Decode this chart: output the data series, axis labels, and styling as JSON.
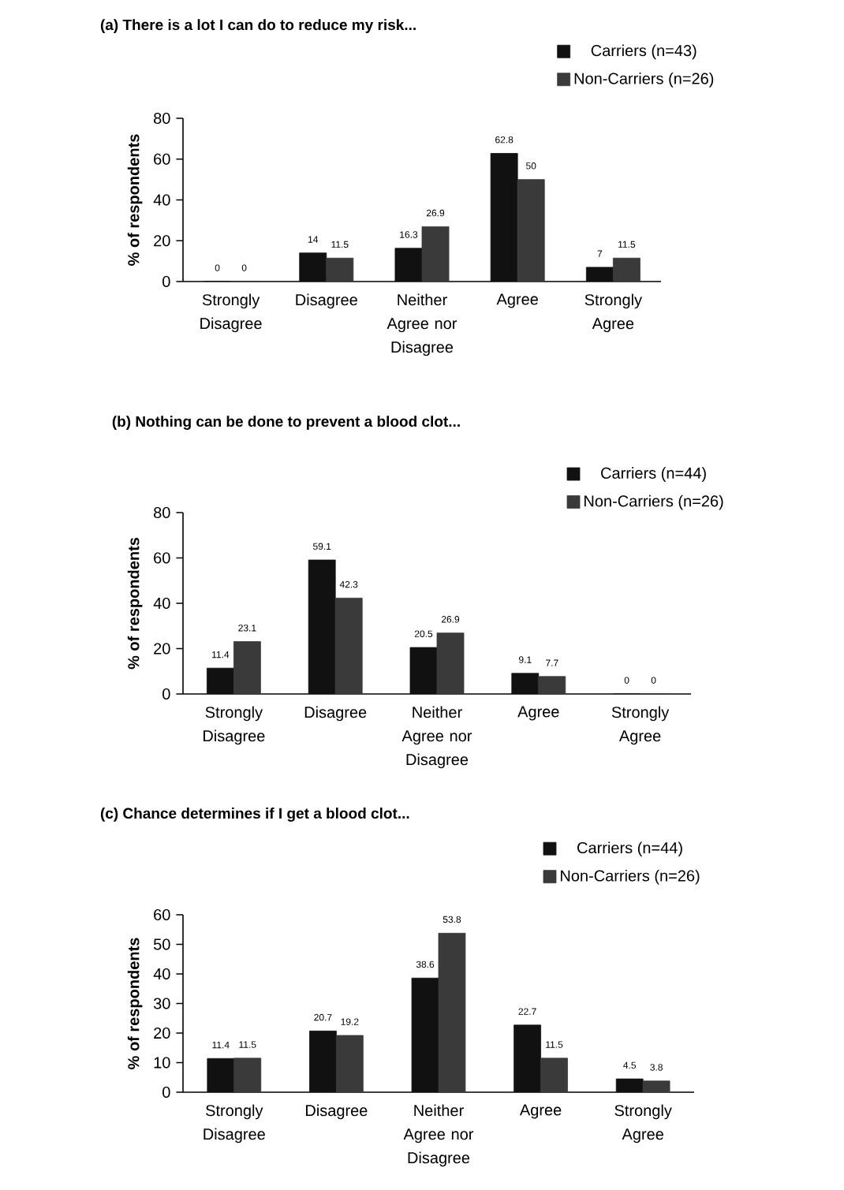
{
  "chart_data": [
    {
      "type": "bar",
      "title": "(a) There is a lot I can do to reduce my risk...",
      "ylabel": "% of respondents",
      "categories": [
        "Strongly Disagree",
        "Disagree",
        "Neither Agree nor Disagree",
        "Agree",
        "Strongly Agree"
      ],
      "series": [
        {
          "name": "Carriers (n=43)",
          "color": "#111111",
          "values": [
            0,
            14,
            16.3,
            62.8,
            7
          ]
        },
        {
          "name": "Non-Carriers (n=26)",
          "color": "#3a3a3a",
          "values": [
            0,
            11.5,
            26.9,
            50,
            11.5
          ]
        }
      ],
      "ylim": [
        0,
        80
      ],
      "yticks": [
        0,
        20,
        40,
        60,
        80
      ],
      "data_labels": true,
      "legend": "top right"
    },
    {
      "type": "bar",
      "title": "(b) Nothing can be done to prevent a blood clot...",
      "ylabel": "% of respondents",
      "categories": [
        "Strongly Disagree",
        "Disagree",
        "Neither Agree nor Disagree",
        "Agree",
        "Strongly Agree"
      ],
      "series": [
        {
          "name": "Carriers (n=44)",
          "color": "#111111",
          "values": [
            11.4,
            59.1,
            20.5,
            9.1,
            0
          ]
        },
        {
          "name": "Non-Carriers (n=26)",
          "color": "#3a3a3a",
          "values": [
            23.1,
            42.3,
            26.9,
            7.7,
            0
          ]
        }
      ],
      "ylim": [
        0,
        80
      ],
      "yticks": [
        0,
        20,
        40,
        60,
        80
      ],
      "data_labels": true,
      "legend": "top right"
    },
    {
      "type": "bar",
      "title": "(c) Chance determines if I get a blood clot...",
      "ylabel": "% of respondents",
      "categories": [
        "Strongly Disagree",
        "Disagree",
        "Neither Agree nor Disagree",
        "Agree",
        "Strongly Agree"
      ],
      "series": [
        {
          "name": "Carriers (n=44)",
          "color": "#111111",
          "values": [
            11.4,
            20.7,
            38.6,
            22.7,
            4.5
          ]
        },
        {
          "name": "Non-Carriers (n=26)",
          "color": "#3a3a3a",
          "values": [
            11.5,
            19.2,
            53.8,
            11.5,
            3.8
          ]
        }
      ],
      "ylim": [
        0,
        60
      ],
      "yticks": [
        0,
        10,
        20,
        30,
        40,
        50,
        60
      ],
      "data_labels": true,
      "legend": "top right"
    }
  ]
}
